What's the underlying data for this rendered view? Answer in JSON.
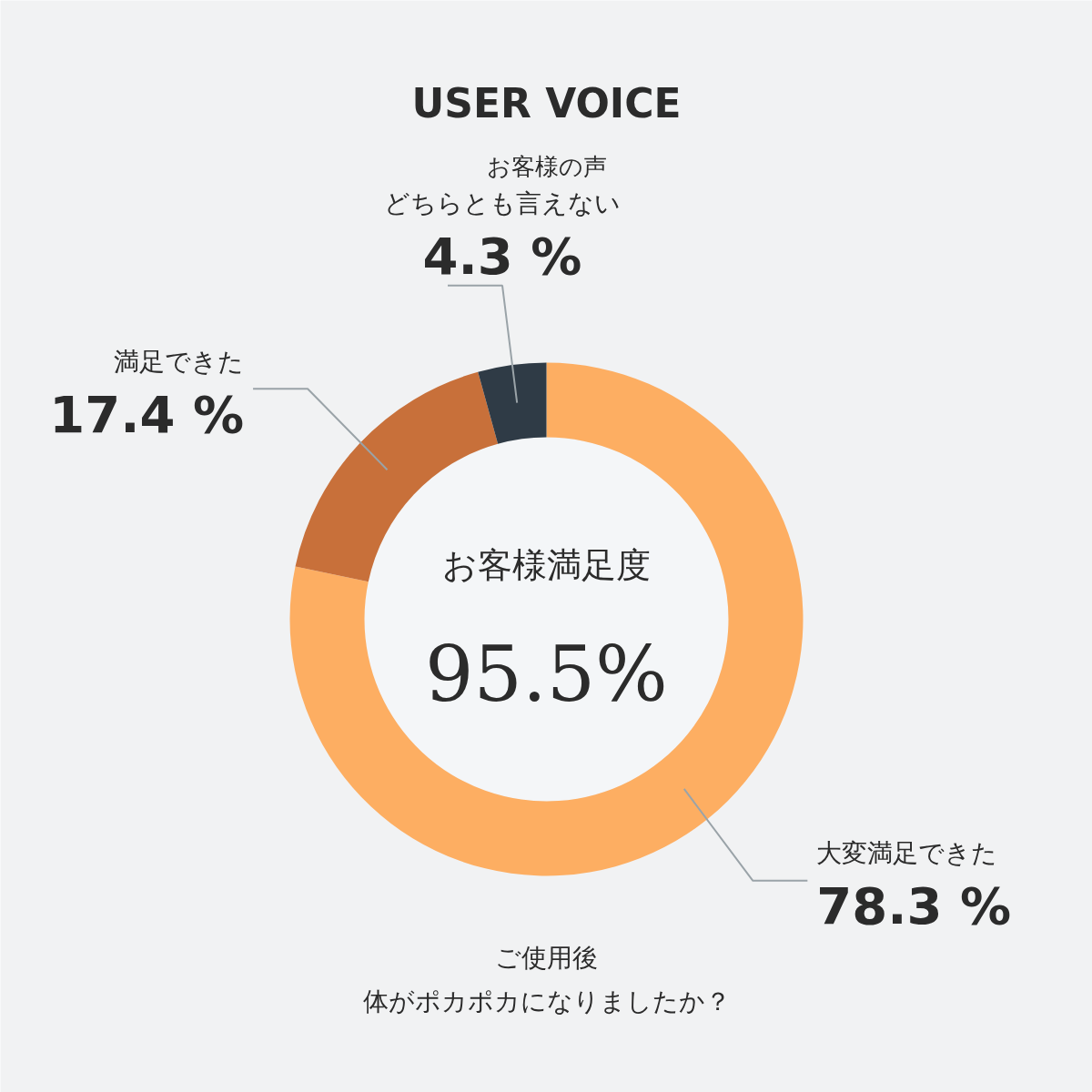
{
  "chart_data": {
    "type": "donut",
    "title": "USER VOICE",
    "subtitle": "お客様の声",
    "categories": [
      "大変満足できた",
      "満足できた",
      "どちらとも言えない"
    ],
    "values": [
      78.3,
      17.4,
      4.3
    ],
    "colors": [
      "#fdae62",
      "#c8703a",
      "#2f3b46"
    ],
    "value_labels": [
      "78.3 %",
      "17.4 %",
      "4.3 %"
    ],
    "annotations": [
      "お客様満足度",
      "95.5%",
      "ご使用後",
      "体がポカポカになりましたか？"
    ]
  }
}
